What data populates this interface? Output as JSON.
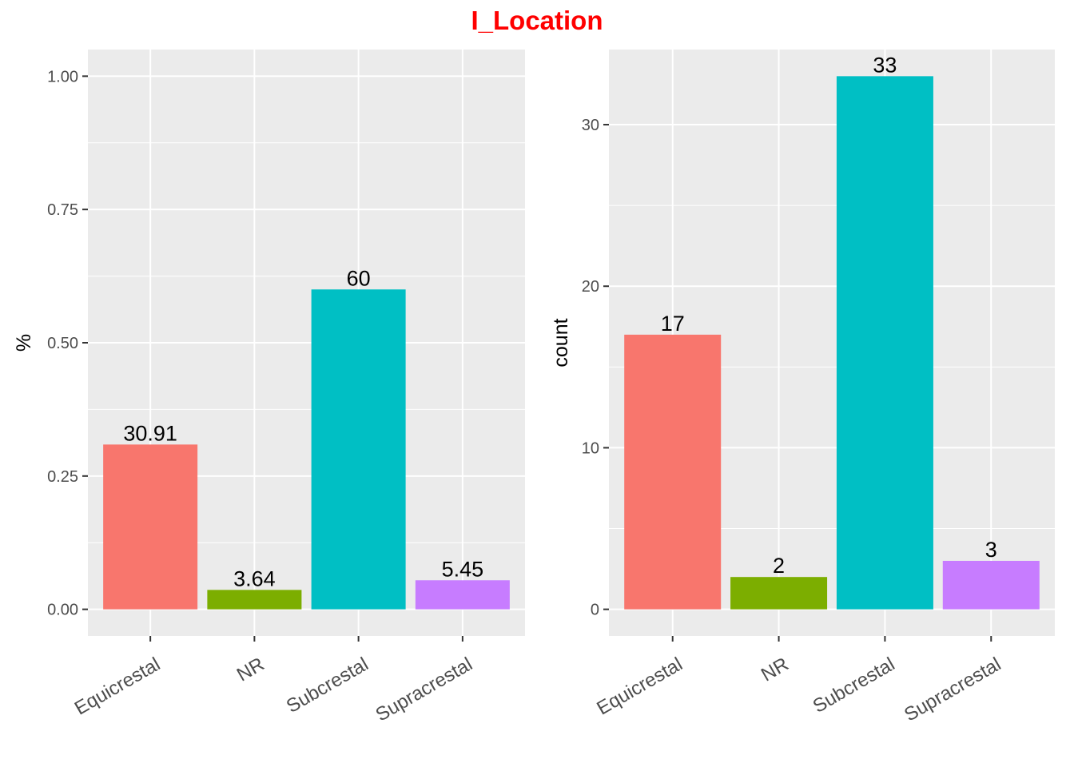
{
  "title": "I_Location",
  "title_color": "#ff0000",
  "panel_background": "#ebebeb",
  "grid_color": "#ffffff",
  "chart_data": [
    {
      "type": "bar",
      "categories": [
        "Equicrestal",
        "NR",
        "Subcrestal",
        "Supracrestal"
      ],
      "values": [
        0.3091,
        0.0364,
        0.6,
        0.0545
      ],
      "data_labels": [
        "30.91",
        "3.64",
        "60",
        "5.45"
      ],
      "colors": [
        "#f8766d",
        "#7cae00",
        "#00bfc4",
        "#c77cff"
      ],
      "ylabel": "%",
      "xlabel": "",
      "ylim": [
        -0.05,
        1.05
      ],
      "yticks": [
        0,
        0.25,
        0.5,
        0.75,
        1.0
      ],
      "ytick_labels": [
        "0.00",
        "0.25",
        "0.50",
        "0.75",
        "1.00"
      ],
      "grid": true,
      "legend": "none"
    },
    {
      "type": "bar",
      "categories": [
        "Equicrestal",
        "NR",
        "Subcrestal",
        "Supracrestal"
      ],
      "values": [
        17,
        2,
        33,
        3
      ],
      "data_labels": [
        "17",
        "2",
        "33",
        "3"
      ],
      "colors": [
        "#f8766d",
        "#7cae00",
        "#00bfc4",
        "#c77cff"
      ],
      "ylabel": "count",
      "xlabel": "",
      "ylim": [
        -1.65,
        34.65
      ],
      "yticks": [
        0,
        10,
        20,
        30
      ],
      "ytick_labels": [
        "0",
        "10",
        "20",
        "30"
      ],
      "grid": true,
      "legend": "none"
    }
  ]
}
